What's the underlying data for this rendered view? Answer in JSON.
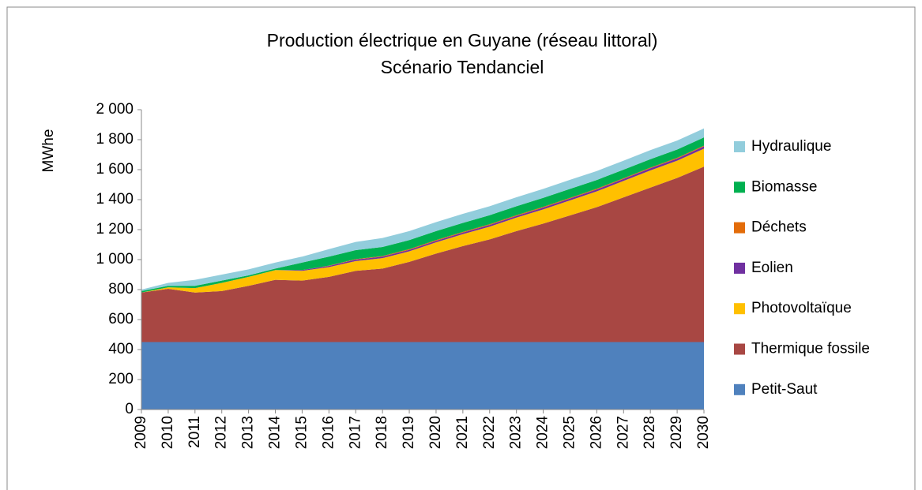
{
  "chart_data": {
    "type": "area",
    "title": "Production électrique en Guyane (réseau littoral)",
    "subtitle": "Scénario Tendanciel",
    "y_label": "MWhe",
    "categories": [
      "2009",
      "2010",
      "2011",
      "2012",
      "2013",
      "2014",
      "2015",
      "2016",
      "2017",
      "2018",
      "2019",
      "2020",
      "2021",
      "2022",
      "2023",
      "2024",
      "2025",
      "2026",
      "2027",
      "2028",
      "2029",
      "2030"
    ],
    "stacked": true,
    "series": [
      {
        "name": "Petit-Saut",
        "color": "#4f81bd",
        "values": [
          450,
          450,
          450,
          450,
          450,
          450,
          450,
          450,
          450,
          450,
          450,
          450,
          450,
          450,
          450,
          450,
          450,
          450,
          450,
          450,
          450,
          450
        ]
      },
      {
        "name": "Thermique fossile",
        "color": "#a84743",
        "values": [
          330,
          355,
          330,
          340,
          375,
          415,
          410,
          435,
          475,
          490,
          535,
          590,
          640,
          685,
          740,
          790,
          845,
          900,
          965,
          1030,
          1095,
          1170
        ]
      },
      {
        "name": "Photovoltaïque",
        "color": "#ffc000",
        "values": [
          0,
          10,
          30,
          55,
          60,
          65,
          65,
          65,
          65,
          70,
          70,
          75,
          80,
          85,
          90,
          95,
          100,
          105,
          110,
          115,
          115,
          120
        ]
      },
      {
        "name": "Eolien",
        "color": "#7030a0",
        "values": [
          0,
          0,
          0,
          0,
          0,
          0,
          5,
          8,
          10,
          10,
          10,
          10,
          10,
          11,
          11,
          12,
          12,
          13,
          13,
          14,
          14,
          15
        ]
      },
      {
        "name": "Déchets",
        "color": "#e36c09",
        "values": [
          0,
          0,
          0,
          0,
          0,
          0,
          0,
          2,
          3,
          4,
          5,
          5,
          5,
          5,
          5,
          5,
          5,
          5,
          5,
          5,
          5,
          5
        ]
      },
      {
        "name": "Biomasse",
        "color": "#00b050",
        "values": [
          10,
          10,
          15,
          15,
          10,
          10,
          50,
          60,
          60,
          60,
          60,
          60,
          60,
          60,
          60,
          60,
          60,
          58,
          57,
          56,
          55,
          55
        ]
      },
      {
        "name": "Hydraulique",
        "color": "#92cddc",
        "values": [
          10,
          20,
          40,
          40,
          40,
          40,
          40,
          50,
          55,
          60,
          60,
          60,
          60,
          60,
          60,
          60,
          60,
          60,
          60,
          60,
          60,
          60
        ]
      }
    ],
    "ylim": [
      0,
      2000
    ],
    "yticks": [
      0,
      200,
      400,
      600,
      800,
      {
        "value": 1000,
        "label": "1 000"
      },
      {
        "value": 1200,
        "label": "1 200"
      },
      {
        "value": 1400,
        "label": "1 400"
      },
      {
        "value": 1600,
        "label": "1 600"
      },
      {
        "value": 1800,
        "label": "1 800"
      },
      {
        "value": 2000,
        "label": "2 000"
      }
    ],
    "legend": "right"
  }
}
